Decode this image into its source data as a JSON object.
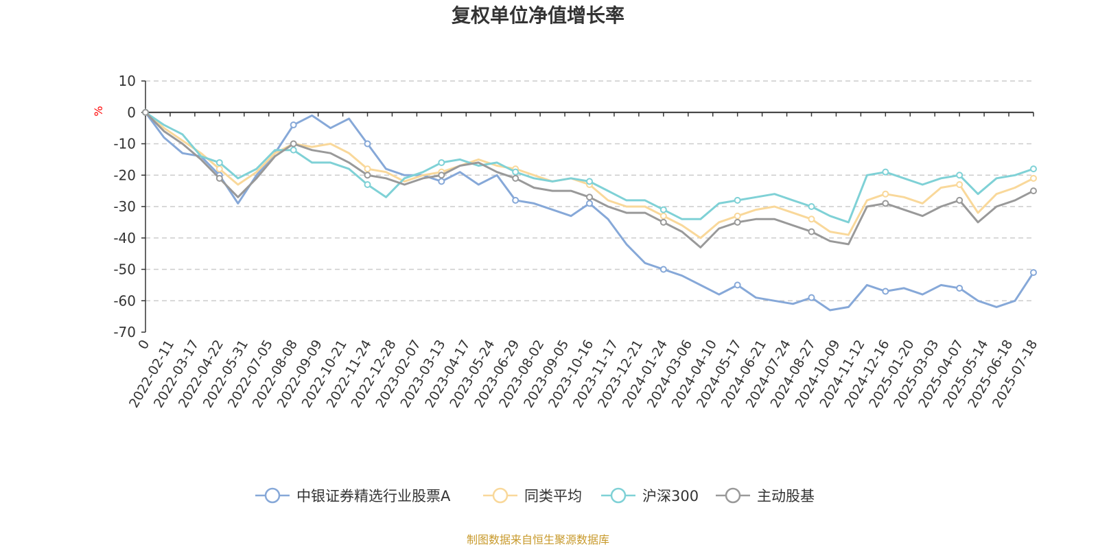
{
  "chart_data": {
    "type": "line",
    "title": "复权单位净值增长率",
    "ylabel": "%",
    "ylim": [
      -70,
      10
    ],
    "yticks": [
      10,
      0,
      -10,
      -20,
      -30,
      -40,
      -50,
      -60,
      -70
    ],
    "grid": true,
    "legend_position": "bottom",
    "x_tick_labels": [
      "0",
      "2022-02-11",
      "2022-03-17",
      "2022-04-22",
      "2022-05-31",
      "2022-07-05",
      "2022-08-08",
      "2022-09-09",
      "2022-10-21",
      "2022-11-24",
      "2022-12-28",
      "2023-02-07",
      "2023-03-13",
      "2023-04-17",
      "2023-05-24",
      "2023-06-29",
      "2023-08-02",
      "2023-09-05",
      "2023-10-16",
      "2023-11-17",
      "2023-12-21",
      "2024-01-24",
      "2024-03-06",
      "2024-04-10",
      "2024-05-17",
      "2024-06-21",
      "2024-07-24",
      "2024-08-27",
      "2024-10-09",
      "2024-11-12",
      "2024-12-16",
      "2025-01-20",
      "2025-03-03",
      "2025-04-07",
      "2025-05-14",
      "2025-06-18",
      "2025-07-18"
    ],
    "series": [
      {
        "name": "中银证券精选行业股票A",
        "color": "#86a8d8",
        "values": [
          0,
          -8,
          -13,
          -14,
          -20,
          -29,
          -20,
          -13,
          -4,
          -1,
          -5,
          -2,
          -10,
          -18,
          -20,
          -20,
          -22,
          -19,
          -23,
          -20,
          -28,
          -29,
          -31,
          -33,
          -29,
          -34,
          -42,
          -48,
          -50,
          -52,
          -55,
          -58,
          -55,
          -59,
          -60,
          -61,
          -59,
          -63,
          -62,
          -55,
          -57,
          -56,
          -58,
          -55,
          -56,
          -60,
          -62,
          -60,
          -51
        ]
      },
      {
        "name": "同类平均",
        "color": "#f9d89a",
        "values": [
          0,
          -5,
          -9,
          -13,
          -18,
          -23,
          -19,
          -13,
          -10,
          -11,
          -10,
          -13,
          -18,
          -19,
          -22,
          -20,
          -19,
          -17,
          -15,
          -17,
          -18,
          -20,
          -22,
          -21,
          -23,
          -28,
          -30,
          -30,
          -33,
          -36,
          -40,
          -35,
          -33,
          -31,
          -30,
          -32,
          -34,
          -38,
          -39,
          -28,
          -26,
          -27,
          -29,
          -24,
          -23,
          -32,
          -26,
          -24,
          -21
        ]
      },
      {
        "name": "沪深300",
        "color": "#7fd1d6",
        "values": [
          0,
          -4,
          -7,
          -14,
          -16,
          -21,
          -18,
          -12,
          -12,
          -16,
          -16,
          -18,
          -23,
          -27,
          -21,
          -19,
          -16,
          -15,
          -17,
          -16,
          -19,
          -21,
          -22,
          -21,
          -22,
          -25,
          -28,
          -28,
          -31,
          -34,
          -34,
          -29,
          -28,
          -27,
          -26,
          -28,
          -30,
          -33,
          -35,
          -20,
          -19,
          -21,
          -23,
          -21,
          -20,
          -26,
          -21,
          -20,
          -18
        ]
      },
      {
        "name": "主动股基",
        "color": "#999999",
        "values": [
          0,
          -6,
          -10,
          -15,
          -21,
          -27,
          -21,
          -14,
          -10,
          -12,
          -13,
          -16,
          -20,
          -21,
          -23,
          -21,
          -20,
          -17,
          -16,
          -19,
          -21,
          -24,
          -25,
          -25,
          -27,
          -30,
          -32,
          -32,
          -35,
          -38,
          -43,
          -37,
          -35,
          -34,
          -34,
          -36,
          -38,
          -41,
          -42,
          -30,
          -29,
          -31,
          -33,
          -30,
          -28,
          -35,
          -30,
          -28,
          -25
        ]
      }
    ]
  },
  "footer": {
    "source": "制图数据来自恒生聚源数据库"
  }
}
